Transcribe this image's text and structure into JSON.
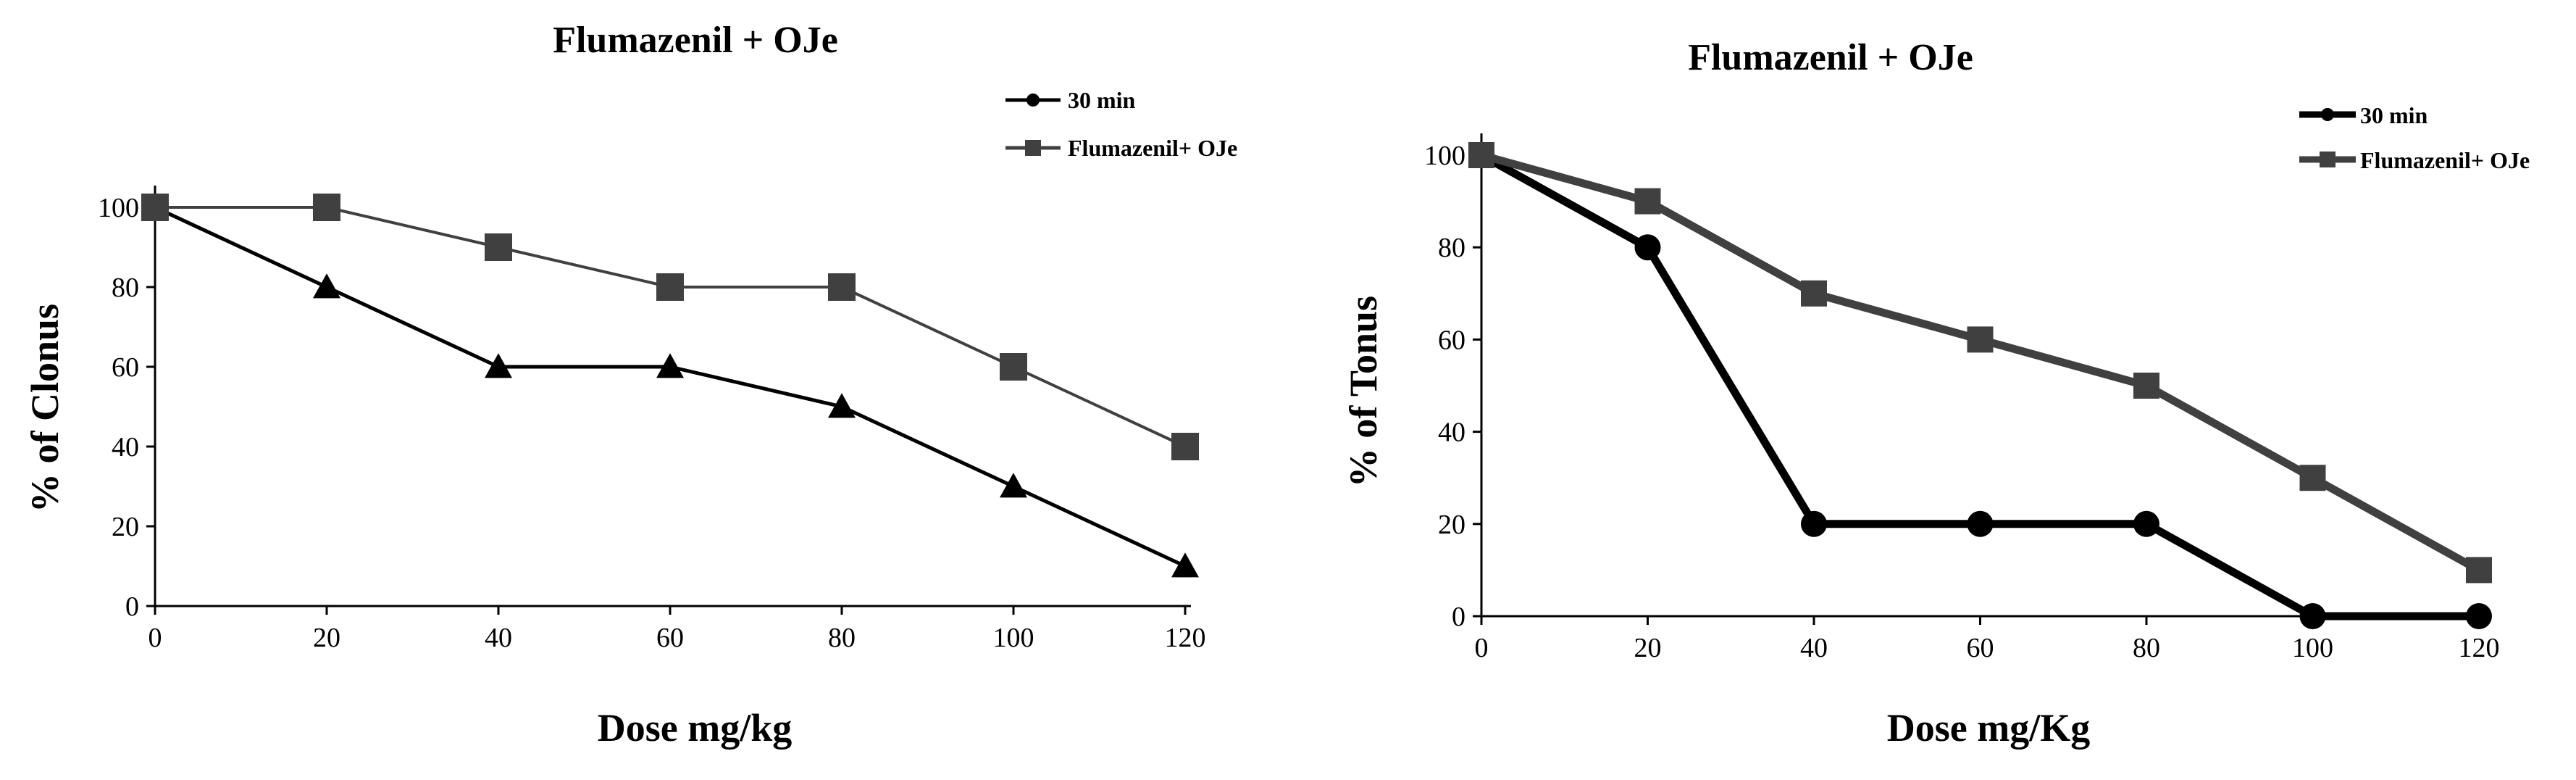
{
  "colors": {
    "series_black": "#000000",
    "series_gray": "#404040",
    "axis": "#000000"
  },
  "chart_data": [
    {
      "type": "line",
      "title": "Flumazenil  + OJe",
      "xlabel": "Dose mg/kg",
      "ylabel": "% of Clonus",
      "x": [
        0,
        20,
        40,
        60,
        80,
        100,
        120
      ],
      "xlim": [
        0,
        120
      ],
      "ylim": [
        0,
        100
      ],
      "xticks": [
        0,
        20,
        40,
        60,
        80,
        100,
        120
      ],
      "yticks": [
        0,
        20,
        40,
        60,
        80,
        100
      ],
      "legend_position": "top-right",
      "series": [
        {
          "name": "30 min",
          "legend_marker": "circle",
          "marker": "triangle",
          "color": "#000000",
          "values": [
            100,
            80,
            60,
            60,
            50,
            30,
            10
          ]
        },
        {
          "name": "Flumazenil+ OJe",
          "legend_marker": "square",
          "marker": "square",
          "color": "#404040",
          "values": [
            100,
            100,
            90,
            80,
            80,
            60,
            40
          ]
        }
      ]
    },
    {
      "type": "line",
      "title": "Flumazenil  + OJe",
      "xlabel": "Dose mg/Kg",
      "ylabel": "% of Tonus",
      "x": [
        0,
        20,
        40,
        60,
        80,
        100,
        120
      ],
      "xlim": [
        0,
        120
      ],
      "ylim": [
        0,
        100
      ],
      "xticks": [
        0,
        20,
        40,
        60,
        80,
        100,
        120
      ],
      "yticks": [
        0,
        20,
        40,
        60,
        80,
        100
      ],
      "legend_position": "top-right",
      "series": [
        {
          "name": "30 min",
          "legend_marker": "circle",
          "marker": "circle",
          "color": "#000000",
          "values": [
            100,
            80,
            20,
            20,
            20,
            0,
            0
          ]
        },
        {
          "name": "Flumazenil+ OJe",
          "legend_marker": "square",
          "marker": "square",
          "color": "#404040",
          "values": [
            100,
            90,
            70,
            60,
            50,
            30,
            10
          ]
        }
      ]
    }
  ]
}
